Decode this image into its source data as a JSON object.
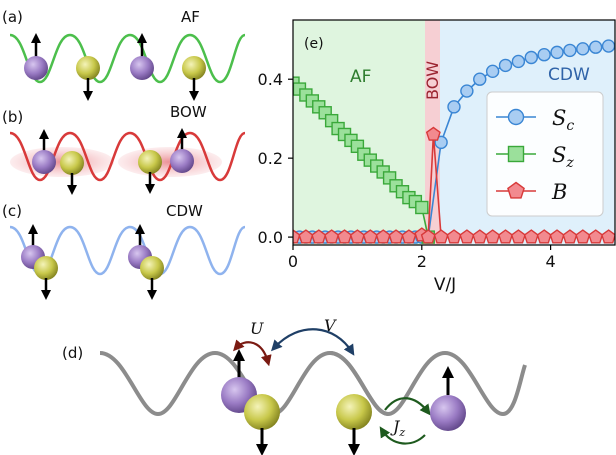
{
  "panels": {
    "a": {
      "tag": "(a)",
      "label": "AF"
    },
    "b": {
      "tag": "(b)",
      "label": "BOW"
    },
    "c": {
      "tag": "(c)",
      "label": "CDW"
    },
    "d": {
      "tag": "(d)",
      "U": "U",
      "V": "V",
      "Jz_main": "J",
      "Jz_sub": "z"
    },
    "e": {
      "tag": "(e)"
    }
  },
  "phase_labels": {
    "af": "AF",
    "bow": "BOW",
    "cdw": "CDW"
  },
  "colors": {
    "af_wave": "#4cbf4c",
    "bow_wave": "#d83a3a",
    "cdw_wave": "#8fb3ee",
    "lattice": "#8c8c8c",
    "purple_particle": "#9a7bc4",
    "yellow_particle": "#c8c84a",
    "af_region": "#dff5df",
    "bow_region": "#f6cfd3",
    "cdw_region": "#dff0fb",
    "Sc": "#3a86d4",
    "Sz": "#3aa83a",
    "B": "#d83a3a"
  },
  "chart_data": {
    "type": "line",
    "xlabel": "V/J",
    "ylabel": "",
    "xlim": [
      0,
      5
    ],
    "ylim": [
      -0.02,
      0.55
    ],
    "xticks": [
      "0",
      "2",
      "4"
    ],
    "yticks": [
      "0.0",
      "0.2",
      "0.4"
    ],
    "legend_placement": "right",
    "series": [
      {
        "name": "S_c",
        "legend_main": "S",
        "legend_sub": "c",
        "marker": "circle",
        "x": [
          0.0,
          0.1,
          0.2,
          0.3,
          0.4,
          0.5,
          0.6,
          0.7,
          0.8,
          0.9,
          1.0,
          1.1,
          1.2,
          1.3,
          1.4,
          1.5,
          1.6,
          1.7,
          1.8,
          1.9,
          2.0,
          2.1,
          2.3,
          2.5,
          2.7,
          2.9,
          3.1,
          3.3,
          3.5,
          3.7,
          3.9,
          4.1,
          4.3,
          4.5,
          4.7,
          4.9
        ],
        "y": [
          0.0,
          0.0,
          0.0,
          0.0,
          0.0,
          0.0,
          0.0,
          0.0,
          0.0,
          0.0,
          0.0,
          0.0,
          0.0,
          0.0,
          0.0,
          0.0,
          0.0,
          0.0,
          0.0,
          0.0,
          0.0,
          0.0,
          0.24,
          0.33,
          0.37,
          0.4,
          0.42,
          0.435,
          0.445,
          0.455,
          0.462,
          0.468,
          0.473,
          0.477,
          0.481,
          0.484
        ]
      },
      {
        "name": "S_z",
        "legend_main": "S",
        "legend_sub": "z",
        "marker": "square",
        "x": [
          0.0,
          0.1,
          0.2,
          0.3,
          0.4,
          0.5,
          0.6,
          0.7,
          0.8,
          0.9,
          1.0,
          1.1,
          1.2,
          1.3,
          1.4,
          1.5,
          1.6,
          1.7,
          1.8,
          1.9,
          2.0,
          2.1
        ],
        "y": [
          0.39,
          0.375,
          0.36,
          0.345,
          0.33,
          0.315,
          0.295,
          0.275,
          0.26,
          0.245,
          0.23,
          0.21,
          0.195,
          0.18,
          0.165,
          0.15,
          0.13,
          0.115,
          0.1,
          0.09,
          0.075,
          0.0
        ]
      },
      {
        "name": "B",
        "legend_main": "B",
        "legend_sub": "",
        "marker": "pentagon",
        "x": [
          0.0,
          0.2,
          0.4,
          0.6,
          0.8,
          1.0,
          1.2,
          1.4,
          1.6,
          1.8,
          2.0,
          2.1,
          2.18,
          2.3,
          2.5,
          2.7,
          2.9,
          3.1,
          3.3,
          3.5,
          3.7,
          3.9,
          4.1,
          4.3,
          4.5,
          4.7,
          4.9
        ],
        "y": [
          0.0,
          0.0,
          0.0,
          0.0,
          0.0,
          0.0,
          0.0,
          0.0,
          0.0,
          0.0,
          0.005,
          0.0,
          0.26,
          0.0,
          0.0,
          0.0,
          0.0,
          0.0,
          0.0,
          0.0,
          0.0,
          0.0,
          0.0,
          0.0,
          0.0,
          0.0,
          0.0
        ]
      }
    ],
    "regions": [
      {
        "name": "AF",
        "x": [
          0,
          2.05
        ]
      },
      {
        "name": "BOW",
        "x": [
          2.05,
          2.3
        ]
      },
      {
        "name": "CDW",
        "x": [
          2.3,
          5
        ]
      }
    ]
  }
}
